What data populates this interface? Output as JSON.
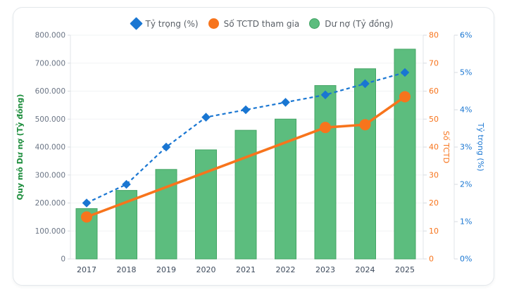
{
  "legend": {
    "items": [
      {
        "label": "Tỷ trọng (%)",
        "marker": "diamond",
        "color": "#1976d2",
        "border": "#1976d2"
      },
      {
        "label": "Số TCTD tham gia",
        "marker": "circle",
        "color": "#f7741c",
        "border": "#f7741c"
      },
      {
        "label": "Dư nợ (Tỷ đồng)",
        "marker": "circle",
        "color": "#5cbd7e",
        "border": "#3fa263"
      }
    ]
  },
  "chart_data": {
    "type": "combo",
    "categories": [
      "2017",
      "2018",
      "2019",
      "2020",
      "2021",
      "2022",
      "2023",
      "2024",
      "2025"
    ],
    "series": [
      {
        "name": "Dư nợ (Tỷ đồng)",
        "type": "bar",
        "axis": "left",
        "color": "#5cbd7e",
        "border_color": "#45a566",
        "values": [
          180000,
          245000,
          320000,
          390000,
          460000,
          500000,
          620000,
          680000,
          750000
        ]
      },
      {
        "name": "Số TCTD tham gia",
        "type": "line",
        "axis": "right_tctd",
        "color": "#f7741c",
        "marker": "circle",
        "interpolate_nulls": true,
        "values": [
          15,
          null,
          null,
          null,
          null,
          null,
          47,
          48,
          58
        ]
      },
      {
        "name": "Tỷ trọng (%)",
        "type": "line",
        "axis": "right_pct",
        "line_style": "dashed",
        "color": "#1976d2",
        "marker": "diamond",
        "values": [
          1.5,
          2.0,
          3.0,
          3.8,
          4.0,
          4.2,
          4.4,
          4.7,
          5.0
        ]
      }
    ],
    "axes": {
      "left": {
        "title": "Quy mô Dư nợ (Tỷ đồng)",
        "color": "#1e8e3e",
        "min": 0,
        "max": 800000,
        "step": 100000,
        "tick_labels": [
          "0",
          "100.000",
          "200.000",
          "300.000",
          "400.000",
          "500.000",
          "600.000",
          "700.000",
          "800.000"
        ]
      },
      "right_tctd": {
        "title": "Số TCTD",
        "color": "#f7741c",
        "min": 0,
        "max": 80,
        "step": 10,
        "tick_labels": [
          "0",
          "10",
          "20",
          "30",
          "40",
          "50",
          "60",
          "70",
          "80"
        ]
      },
      "right_pct": {
        "title": "Tỷ trọng (%)",
        "color": "#1976d2",
        "min": 0,
        "max": 6,
        "step": 1,
        "tick_labels": [
          "0%",
          "1%",
          "2%",
          "3%",
          "4%",
          "5%",
          "6%"
        ]
      }
    },
    "grid": true,
    "legend_position": "top"
  }
}
